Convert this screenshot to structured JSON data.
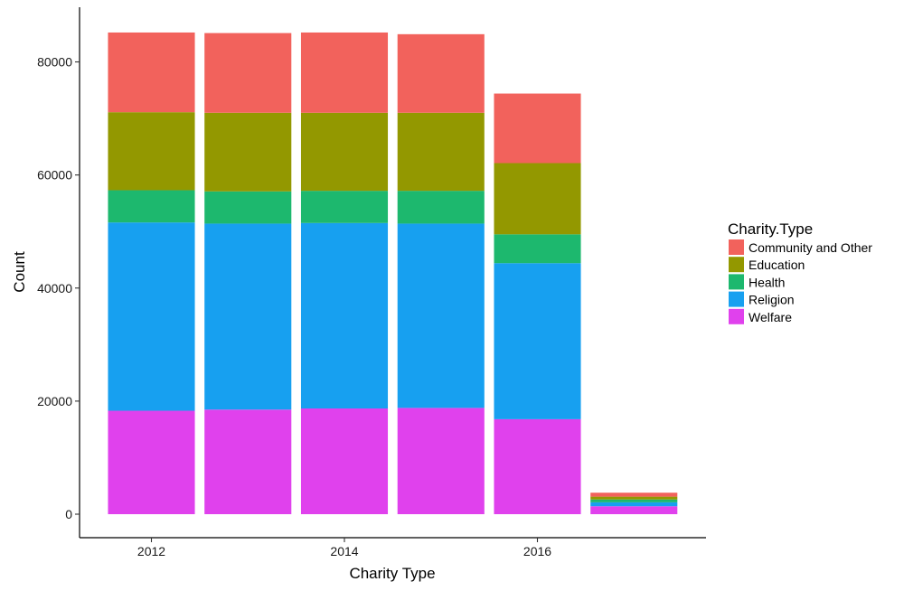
{
  "chart_data": {
    "type": "bar",
    "stacked": true,
    "xlabel": "Charity Type",
    "ylabel": "Count",
    "x": [
      2012,
      2013,
      2014,
      2015,
      2016,
      2017
    ],
    "xticks": [
      2012,
      2014,
      2016
    ],
    "yticks": [
      0,
      20000,
      40000,
      60000,
      80000
    ],
    "ylim": [
      0,
      85200
    ],
    "grid": false,
    "legend": {
      "title": "Charity.Type",
      "position": "right"
    },
    "series": [
      {
        "name": "Welfare",
        "color": "#E041ED",
        "values": [
          18300,
          18500,
          18700,
          18800,
          16800,
          1400
        ]
      },
      {
        "name": "Religion",
        "color": "#17A0F0",
        "values": [
          33300,
          32900,
          32800,
          32600,
          27600,
          700
        ]
      },
      {
        "name": "Health",
        "color": "#1DB86E",
        "values": [
          5700,
          5700,
          5700,
          5800,
          5100,
          500
        ]
      },
      {
        "name": "Education",
        "color": "#939800",
        "values": [
          13800,
          13900,
          13800,
          13800,
          12600,
          500
        ]
      },
      {
        "name": "Community and Other",
        "color": "#F2625C",
        "values": [
          14100,
          14100,
          14200,
          13900,
          12300,
          700
        ]
      }
    ],
    "legend_order": [
      "Community and Other",
      "Education",
      "Health",
      "Religion",
      "Welfare"
    ]
  }
}
